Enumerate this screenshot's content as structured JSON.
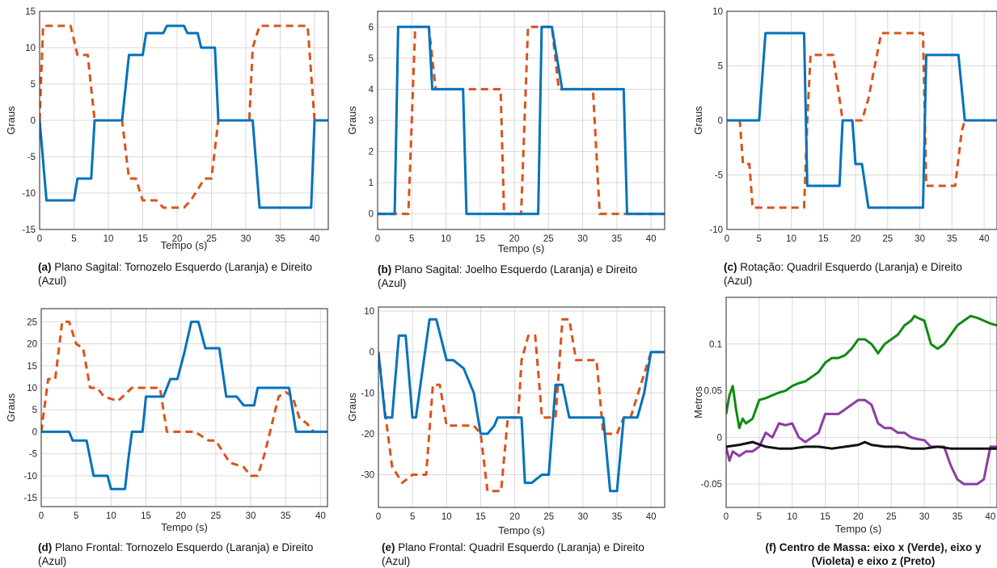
{
  "chart_data": [
    {
      "type": "line",
      "caption_tag": "(a)",
      "caption": "Plano Sagital: Tornozelo Esquerdo (Laranja) e Direito (Azul)",
      "xlabel": "Tempo (s)",
      "ylabel": "Graus",
      "xlim": [
        0,
        42
      ],
      "ylim": [
        -15,
        15
      ],
      "xticks": [
        0,
        5,
        10,
        15,
        20,
        25,
        30,
        35,
        40
      ],
      "yticks": [
        -15,
        -10,
        -5,
        0,
        5,
        10,
        15
      ],
      "grid": true,
      "series": [
        {
          "color": "#D95319",
          "style": "dashed",
          "x": [
            0,
            0.5,
            1,
            4.5,
            5.5,
            7,
            8,
            12,
            13,
            14,
            15,
            17,
            18,
            21,
            22,
            24,
            25,
            26,
            30.5,
            31,
            32,
            39,
            40,
            41,
            42
          ],
          "y": [
            0,
            13,
            13,
            13,
            9,
            9,
            0,
            0,
            -8,
            -8,
            -11,
            -11,
            -12,
            -12,
            -11,
            -8,
            -8,
            0,
            0,
            10,
            13,
            13,
            0,
            0,
            0
          ]
        },
        {
          "color": "#0072BD",
          "style": "solid",
          "x": [
            0,
            1,
            5,
            5.5,
            7.5,
            8,
            12,
            13,
            15,
            15.5,
            18,
            18.5,
            21,
            21.5,
            23,
            23.5,
            25.5,
            26,
            31,
            32,
            39,
            39.5,
            40,
            42
          ],
          "y": [
            0,
            -11,
            -11,
            -8,
            -8,
            0,
            0,
            9,
            9,
            12,
            12,
            13,
            13,
            12,
            12,
            10,
            10,
            0,
            0,
            -12,
            -12,
            -12,
            0,
            0
          ]
        }
      ]
    },
    {
      "type": "line",
      "caption_tag": "(b)",
      "caption": "Plano Sagital: Joelho Esquerdo (Laranja) e Direito (Azul)",
      "xlabel": "Tempo (s)",
      "ylabel": "Graus",
      "xlim": [
        0,
        42
      ],
      "ylim": [
        -0.5,
        6.5
      ],
      "xticks": [
        0,
        5,
        10,
        15,
        20,
        25,
        30,
        35,
        40
      ],
      "yticks": [
        0,
        1,
        2,
        3,
        4,
        5,
        6
      ],
      "grid": true,
      "series": [
        {
          "color": "#D95319",
          "style": "dashed",
          "x": [
            0,
            4.5,
            5.5,
            6.5,
            7.5,
            8.5,
            18,
            18.5,
            21,
            22,
            25.5,
            26.5,
            31.5,
            32.5,
            42
          ],
          "y": [
            0,
            0,
            6,
            6,
            6,
            4,
            4,
            0,
            0,
            6,
            6,
            4,
            4,
            0,
            0
          ]
        },
        {
          "color": "#0072BD",
          "style": "solid",
          "x": [
            0,
            2.5,
            3,
            7.5,
            8,
            12.5,
            13,
            23.5,
            24,
            25.5,
            27,
            36,
            36.5,
            42
          ],
          "y": [
            0,
            0,
            6,
            6,
            4,
            4,
            0,
            0,
            6,
            6,
            4,
            4,
            0,
            0
          ]
        }
      ]
    },
    {
      "type": "line",
      "caption_tag": "(c)",
      "caption": "Rotação: Quadril Esquerdo (Laranja) e Direito (Azul)",
      "xlabel": "",
      "ylabel": "Graus",
      "xlim": [
        0,
        42
      ],
      "ylim": [
        -10,
        10
      ],
      "xticks": [
        0,
        5,
        10,
        15,
        20,
        25,
        30,
        35,
        40
      ],
      "yticks": [
        -10,
        -5,
        0,
        5,
        10
      ],
      "grid": true,
      "series": [
        {
          "color": "#D95319",
          "style": "dashed",
          "x": [
            0,
            2,
            2.5,
            3.5,
            4,
            12,
            12.5,
            13,
            16.5,
            17.5,
            18,
            21,
            22,
            23,
            24,
            30.5,
            31,
            35.5,
            36.5,
            37,
            42
          ],
          "y": [
            0,
            0,
            -4,
            -4,
            -8,
            -8,
            0,
            6,
            6,
            2,
            0,
            0,
            2,
            5,
            8,
            8,
            -6,
            -6,
            -1,
            0,
            0
          ]
        },
        {
          "color": "#0072BD",
          "style": "solid",
          "x": [
            0,
            5,
            6,
            12,
            12.5,
            17.5,
            18,
            19.5,
            20,
            21,
            22,
            23,
            30.5,
            31,
            36,
            37,
            42
          ],
          "y": [
            0,
            0,
            8,
            8,
            -6,
            -6,
            0,
            0,
            -4,
            -4,
            -8,
            -8,
            -8,
            6,
            6,
            0,
            0
          ]
        }
      ]
    },
    {
      "type": "line",
      "caption_tag": "(d)",
      "caption": "Plano Frontal: Tornozelo Esquerdo (Laranja) e Direito (Azul)",
      "xlabel": "Tempo (s)",
      "ylabel": "Graus",
      "xlim": [
        0,
        41
      ],
      "ylim": [
        -17,
        28
      ],
      "xticks": [
        0,
        5,
        10,
        15,
        20,
        25,
        30,
        35,
        40
      ],
      "yticks": [
        -15,
        -10,
        -5,
        0,
        5,
        10,
        15,
        20,
        25
      ],
      "grid": true,
      "series": [
        {
          "color": "#D95319",
          "style": "dashed",
          "x": [
            0,
            1,
            2,
            3,
            4,
            5,
            6,
            7,
            8,
            9,
            11,
            13,
            17,
            18,
            22,
            24,
            25,
            27,
            29,
            30,
            31,
            32,
            34,
            35,
            36,
            37,
            38,
            39,
            41
          ],
          "y": [
            0,
            12,
            12,
            25,
            25,
            20,
            19,
            10,
            10,
            8,
            7,
            10,
            10,
            0,
            0,
            -2,
            -2,
            -7,
            -8,
            -10,
            -10,
            -5,
            8,
            9,
            8,
            3,
            2,
            0,
            0
          ]
        },
        {
          "color": "#0072BD",
          "style": "solid",
          "x": [
            0,
            4,
            4.5,
            6.5,
            7.5,
            9.5,
            10,
            12,
            12.5,
            13,
            14.5,
            15,
            16.5,
            17.5,
            18.5,
            19.5,
            20.5,
            21.5,
            22.5,
            23.5,
            25.5,
            26.5,
            28,
            29,
            30.5,
            31,
            35.5,
            36.5,
            39,
            41
          ],
          "y": [
            0,
            0,
            -2,
            -2,
            -10,
            -10,
            -13,
            -13,
            -6,
            0,
            0,
            8,
            8,
            8,
            12,
            12,
            18,
            25,
            25,
            19,
            19,
            8,
            8,
            6,
            6,
            10,
            10,
            0,
            0,
            0
          ]
        }
      ]
    },
    {
      "type": "line",
      "caption_tag": "(e)",
      "caption": "Plano Frontal: Quadril Esquerdo (Laranja) e Direito (Azul)",
      "xlabel": "Tempo (s)",
      "ylabel": "Graus",
      "xlim": [
        0,
        42
      ],
      "ylim": [
        -38,
        11
      ],
      "xticks": [
        0,
        5,
        10,
        15,
        20,
        25,
        30,
        35,
        40
      ],
      "yticks": [
        -30,
        -20,
        -10,
        0,
        10
      ],
      "grid": true,
      "series": [
        {
          "color": "#D95319",
          "style": "dashed",
          "x": [
            0,
            1,
            2,
            3.5,
            5,
            7,
            8,
            9,
            10,
            11,
            14,
            15,
            16,
            18,
            19,
            20.5,
            21,
            22,
            23,
            24,
            26,
            27,
            28,
            29,
            32,
            33,
            34,
            35,
            36,
            37,
            40,
            42
          ],
          "y": [
            0,
            -15,
            -28,
            -32,
            -30,
            -30,
            -8,
            -8,
            -18,
            -18,
            -18,
            -20,
            -34,
            -34,
            -16,
            -16,
            -2,
            4,
            4,
            -16,
            -16,
            8,
            8,
            -2,
            -2,
            -20,
            -20,
            -20,
            -16,
            -16,
            0,
            0
          ]
        },
        {
          "color": "#0072BD",
          "style": "solid",
          "x": [
            0,
            1,
            2,
            3,
            4,
            5,
            5.5,
            7.5,
            8.5,
            10,
            11,
            12.5,
            14,
            15,
            16,
            17,
            17.5,
            18,
            21,
            21.5,
            22.5,
            24,
            25,
            26,
            27,
            28,
            29,
            33,
            34,
            35,
            36,
            38,
            39,
            40,
            42
          ],
          "y": [
            0,
            -16,
            -16,
            4,
            4,
            -16,
            -16,
            8,
            8,
            -2,
            -2,
            -4,
            -10,
            -20,
            -20,
            -18,
            -16,
            -16,
            -16,
            -32,
            -32,
            -30,
            -30,
            -8,
            -8,
            -16,
            -16,
            -16,
            -34,
            -34,
            -16,
            -16,
            -10,
            0,
            0
          ]
        }
      ]
    },
    {
      "type": "line",
      "caption_tag": "",
      "caption": "(f) Centro de Massa: eixo x (Verde), eixo y (Violeta) e eixo z (Preto)",
      "xlabel": "Tempo (s)",
      "ylabel": "Metros",
      "xlim": [
        0,
        41
      ],
      "ylim": [
        -0.075,
        0.15
      ],
      "xticks": [
        0,
        5,
        10,
        15,
        20,
        25,
        30,
        35,
        40
      ],
      "yticks": [
        -0.05,
        0,
        0.05,
        0.1
      ],
      "ytick_labels": [
        "-0.05",
        "0",
        "0.05",
        "0.1"
      ],
      "grid": true,
      "series": [
        {
          "color": "#0F8A0F",
          "style": "solid",
          "x": [
            0,
            0.5,
            1,
            1.5,
            2,
            2.5,
            3,
            4,
            5,
            6,
            7,
            8,
            9,
            10,
            11,
            12,
            13,
            14,
            15,
            16,
            17,
            18,
            19,
            20,
            21,
            22,
            23,
            24,
            25,
            26,
            27,
            28,
            28.5,
            29,
            30,
            31,
            32,
            33,
            34,
            35,
            36,
            37,
            38,
            39,
            40,
            41
          ],
          "y": [
            0.025,
            0.045,
            0.055,
            0.03,
            0.01,
            0.02,
            0.015,
            0.02,
            0.04,
            0.042,
            0.045,
            0.048,
            0.05,
            0.055,
            0.058,
            0.06,
            0.065,
            0.07,
            0.08,
            0.085,
            0.085,
            0.088,
            0.095,
            0.105,
            0.105,
            0.1,
            0.09,
            0.1,
            0.105,
            0.11,
            0.12,
            0.125,
            0.13,
            0.128,
            0.125,
            0.1,
            0.095,
            0.1,
            0.11,
            0.12,
            0.125,
            0.13,
            0.128,
            0.125,
            0.122,
            0.12
          ]
        },
        {
          "color": "#8E3BA6",
          "style": "solid",
          "x": [
            0,
            0.5,
            1,
            2,
            3,
            4,
            5,
            6,
            7,
            8,
            9,
            10,
            11,
            12,
            13,
            14,
            15,
            16,
            17,
            18,
            19,
            20,
            21,
            22,
            23,
            24,
            25,
            26,
            27,
            28,
            29,
            30,
            31,
            32,
            33,
            34,
            35,
            36,
            37,
            38,
            39,
            40,
            41
          ],
          "y": [
            -0.01,
            -0.025,
            -0.015,
            -0.02,
            -0.015,
            -0.015,
            -0.01,
            0.005,
            0.0,
            0.015,
            0.013,
            0.015,
            0.0,
            -0.005,
            0.0,
            0.005,
            0.025,
            0.025,
            0.025,
            0.03,
            0.035,
            0.04,
            0.04,
            0.035,
            0.015,
            0.01,
            0.01,
            0.005,
            0.005,
            0.0,
            -0.002,
            -0.003,
            -0.01,
            -0.01,
            -0.01,
            -0.03,
            -0.045,
            -0.05,
            -0.05,
            -0.05,
            -0.045,
            -0.01,
            -0.01
          ]
        },
        {
          "color": "#111111",
          "style": "solid",
          "x": [
            0,
            2,
            4,
            6,
            8,
            10,
            12,
            14,
            16,
            18,
            20,
            21,
            22,
            24,
            26,
            28,
            30,
            32,
            34,
            36,
            38,
            40,
            41
          ],
          "y": [
            -0.01,
            -0.008,
            -0.005,
            -0.01,
            -0.012,
            -0.012,
            -0.01,
            -0.01,
            -0.012,
            -0.01,
            -0.008,
            -0.005,
            -0.008,
            -0.01,
            -0.01,
            -0.012,
            -0.012,
            -0.01,
            -0.012,
            -0.012,
            -0.012,
            -0.012,
            -0.012
          ]
        }
      ]
    }
  ]
}
